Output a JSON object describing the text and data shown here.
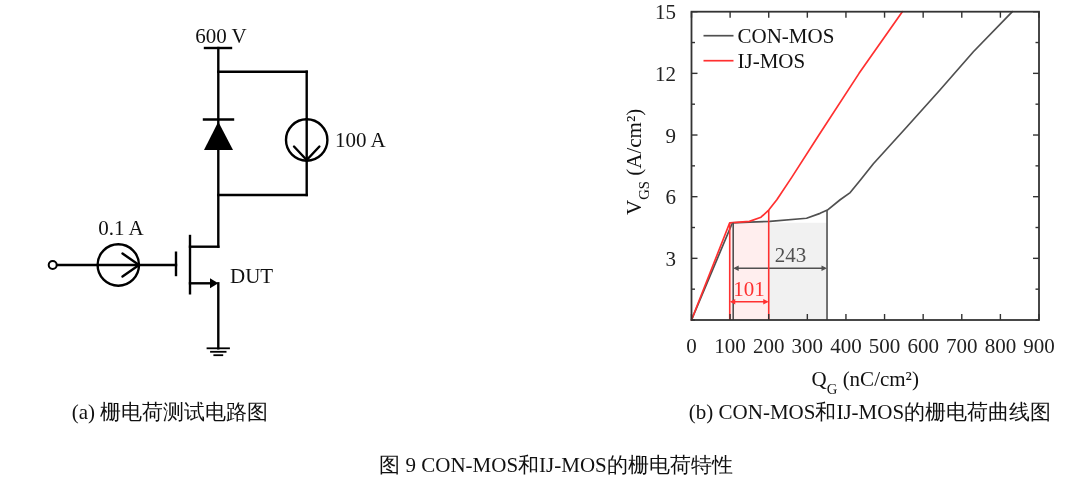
{
  "chart_data": [
    {
      "type": "other",
      "title": "(a) 栅电荷测试电路图",
      "annotations": [
        "600 V",
        "100 A",
        "0.1 A",
        "DUT",
        "图 9 CON-MOS和IJ-MOS的栅电荷特性"
      ]
    },
    {
      "type": "line",
      "title": "(b) CON-MOS和IJ-MOS的栅电荷曲线图",
      "xlabel": "Q$_{G}$ (nC/cm²)",
      "ylabel": "V$_{GS}$ (A/cm²)",
      "xlim": [
        0,
        900
      ],
      "xticks": [
        0,
        100,
        200,
        300,
        400,
        500,
        600,
        700,
        800,
        900
      ],
      "ylim": [
        0,
        15
      ],
      "yticks": [
        {
          "value": 0,
          "label": null
        },
        {
          "value": 1.5,
          "label": null
        },
        3,
        {
          "value": 4.5,
          "label": null
        },
        6,
        {
          "value": 7.5,
          "label": null
        },
        9,
        {
          "value": 10.5,
          "label": null
        },
        12,
        {
          "value": 13.5,
          "label": null
        },
        15
      ],
      "legend": "top left",
      "line_style": "solid",
      "series": [
        {
          "name": "CON-MOS",
          "color": "#505050",
          "x": [
            0,
            106,
            150,
            203,
            298,
            333,
            352,
            385,
            411,
            437,
            471,
            558,
            644,
            730,
            831
          ],
          "values": [
            0,
            4.73,
            4.76,
            4.8,
            4.95,
            5.19,
            5.35,
            5.85,
            6.2,
            6.8,
            7.6,
            9.4,
            11.2,
            13.05,
            15
          ]
        },
        {
          "name": "IJ-MOS",
          "color": "#ff3030",
          "x": [
            0,
            99,
            150,
            180,
            200,
            221,
            260,
            330,
            434,
            546
          ],
          "values": [
            0,
            4.73,
            4.8,
            5.0,
            5.35,
            5.85,
            6.95,
            9.0,
            12.0,
            15
          ]
        }
      ],
      "bands": [
        {
          "axis": "x",
          "from": 108,
          "to": 351,
          "label": "243"
        },
        {
          "axis": "x",
          "from": 99,
          "to": 200,
          "label": "101"
        }
      ]
    }
  ]
}
